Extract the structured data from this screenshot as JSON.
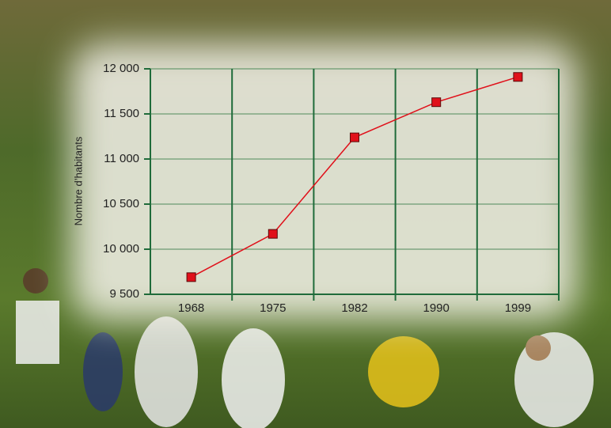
{
  "chart_data": {
    "type": "line",
    "y_label": "Nombre d’habitants",
    "categories": [
      "1968",
      "1975",
      "1982",
      "1990",
      "1999"
    ],
    "values": [
      9690,
      10170,
      11240,
      11630,
      11910
    ],
    "color": "#e0101a",
    "ylim": [
      9500,
      12000
    ],
    "yticks": [
      {
        "value": 9500,
        "label": "9 500"
      },
      {
        "value": 10000,
        "label": "10 000"
      },
      {
        "value": 10500,
        "label": "10 500"
      },
      {
        "value": 11000,
        "label": "11 000"
      },
      {
        "value": 11500,
        "label": "11 500"
      },
      {
        "value": 12000,
        "label": "12 000"
      }
    ],
    "grid": true
  }
}
